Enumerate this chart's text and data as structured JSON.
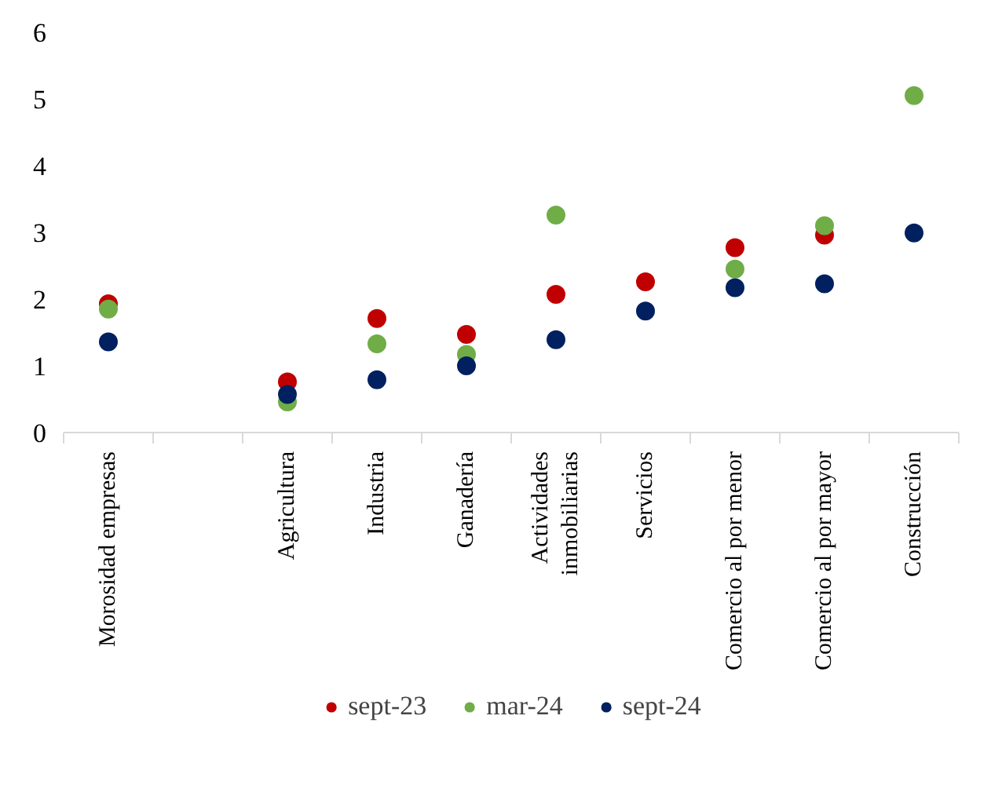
{
  "chart_data": {
    "type": "scatter",
    "categories": [
      "Morosidad empresas",
      null,
      "Agricultura",
      "Industria",
      "Ganadería",
      "Actividades inmobiliarias",
      "Servicios",
      "Comercio al por menor",
      "Comercio al por mayor",
      "Construcción"
    ],
    "series": [
      {
        "name": "sept-23",
        "color": "#c00000",
        "values": [
          1.93,
          null,
          0.76,
          1.71,
          1.47,
          2.07,
          2.26,
          2.77,
          2.96,
          null
        ]
      },
      {
        "name": "mar-24",
        "color": "#70ad47",
        "values": [
          1.85,
          null,
          0.46,
          1.33,
          1.17,
          3.26,
          null,
          2.45,
          3.1,
          5.05
        ]
      },
      {
        "name": "sept-24",
        "color": "#002060",
        "values": [
          1.36,
          null,
          0.57,
          0.79,
          1.0,
          1.39,
          1.82,
          2.17,
          2.23,
          2.99
        ]
      }
    ],
    "ylim": [
      0,
      6
    ],
    "yticks": [
      0,
      1,
      2,
      3,
      4,
      5,
      6
    ],
    "grid": false,
    "legend": "bottom",
    "marker": "circle"
  }
}
